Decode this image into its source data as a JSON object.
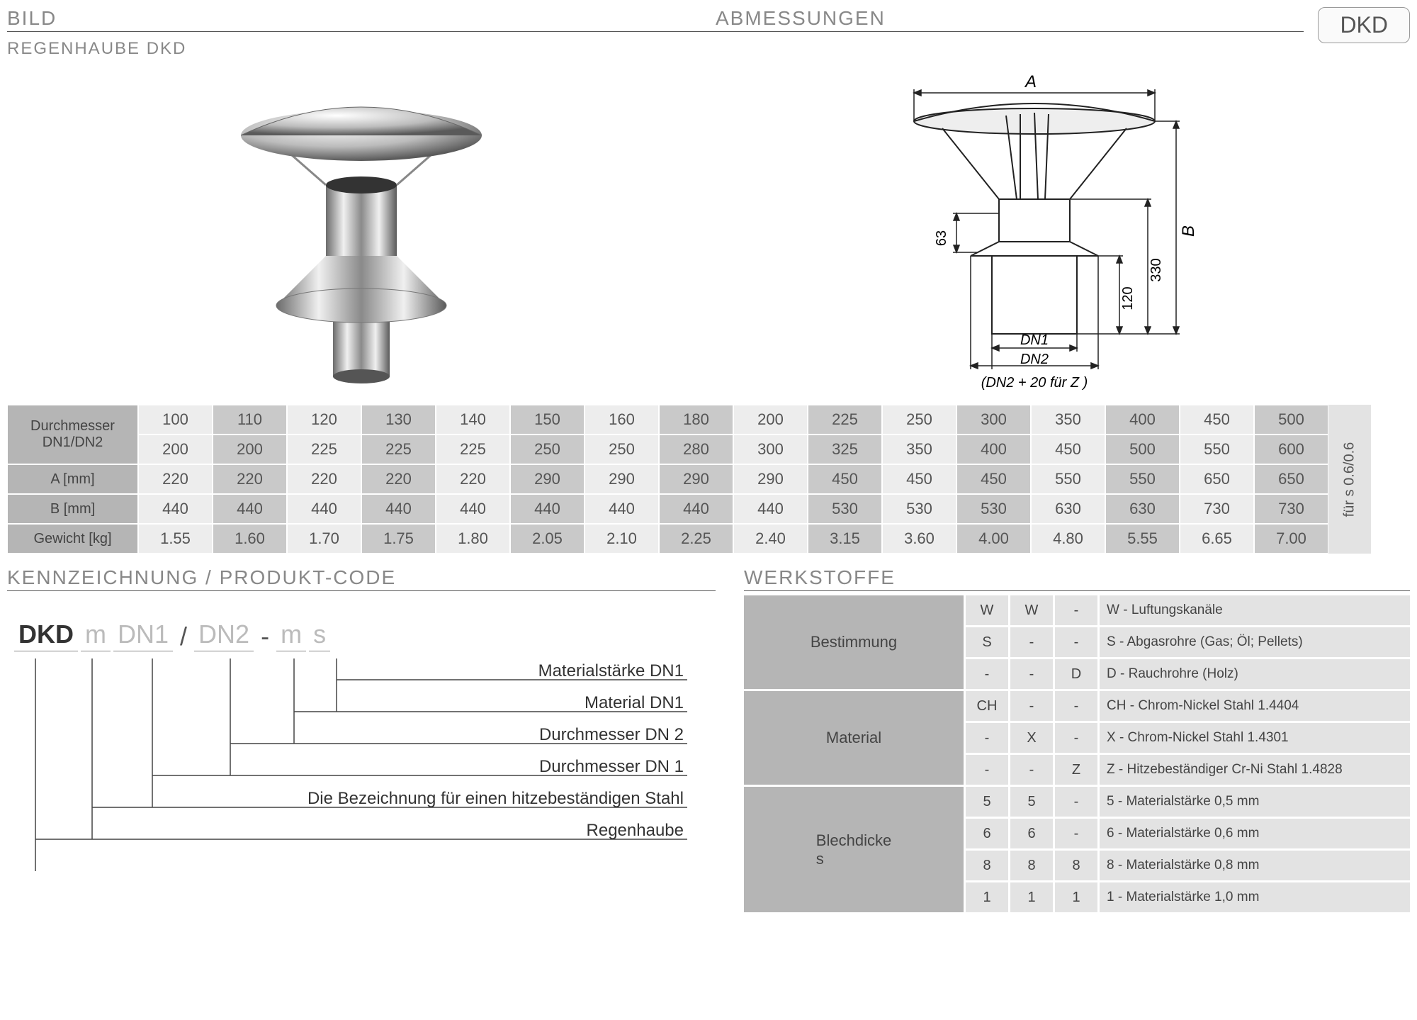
{
  "headers": {
    "bild": "BILD",
    "abmessungen": "ABMESSUNGEN",
    "kennzeichnung": "KENNZEICHNUNG  / PRODUKT-CODE",
    "werkstoffe": "WERKSTOFFE"
  },
  "product_badge": "DKD",
  "subtitle": "REGENHAUBE  DKD",
  "diagram": {
    "label_A": "A",
    "label_B": "B",
    "dim_63": "63",
    "dim_120": "120",
    "dim_330": "330",
    "label_DN1": "DN1",
    "label_DN2": "DN2",
    "note": "(DN2 + 20 für Z )",
    "colors": {
      "line": "#333333",
      "fill_light": "#e8e8e8"
    }
  },
  "table": {
    "row_labels": {
      "diameter_line1": "Durchmesser",
      "diameter_line2": "DN1/DN2",
      "a": "A [mm]",
      "b": "B [mm]",
      "weight": "Gewicht [kg]"
    },
    "side_label": "für s 0.6/0.6",
    "columns_dn1": [
      "100",
      "110",
      "120",
      "130",
      "140",
      "150",
      "160",
      "180",
      "200",
      "225",
      "250",
      "300",
      "350",
      "400",
      "450",
      "500"
    ],
    "columns_dn2": [
      "200",
      "200",
      "225",
      "225",
      "225",
      "250",
      "250",
      "280",
      "300",
      "325",
      "350",
      "400",
      "450",
      "500",
      "550",
      "600"
    ],
    "a_mm": [
      "220",
      "220",
      "220",
      "220",
      "220",
      "290",
      "290",
      "290",
      "290",
      "450",
      "450",
      "450",
      "550",
      "550",
      "650",
      "650"
    ],
    "b_mm": [
      "440",
      "440",
      "440",
      "440",
      "440",
      "440",
      "440",
      "440",
      "440",
      "530",
      "530",
      "530",
      "630",
      "630",
      "730",
      "730"
    ],
    "weight_kg": [
      "1.55",
      "1.60",
      "1.70",
      "1.75",
      "1.80",
      "2.05",
      "2.10",
      "2.25",
      "2.40",
      "3.15",
      "3.60",
      "4.00",
      "4.80",
      "5.55",
      "6.65",
      "7.00"
    ],
    "colors": {
      "label_bg": "#b5b5b5",
      "cell_dark": "#c9c9c9",
      "cell_light": "#ededed",
      "side_bg": "#e3e3e3"
    }
  },
  "code": {
    "tokens": [
      "DKD",
      "m",
      "DN1",
      "/",
      "DN2",
      "-",
      "m",
      "s"
    ],
    "legend": [
      "Materialstärke DN1",
      "Material DN1",
      "Durchmesser DN 2",
      "Durchmesser DN 1",
      "Die Bezeichnung für einen hitzebeständigen Stahl",
      "Regenhaube"
    ]
  },
  "werkstoffe": {
    "groups": [
      {
        "label": "Bestimmung",
        "rows": [
          {
            "c": [
              "W",
              "W",
              "-"
            ],
            "desc": "W - Luftungskanäle"
          },
          {
            "c": [
              "S",
              "-",
              "-"
            ],
            "desc": "S  - Abgasrohre (Gas; Öl; Pellets)"
          },
          {
            "c": [
              "-",
              "-",
              "D"
            ],
            "desc": "D  - Rauchrohre (Holz)"
          }
        ]
      },
      {
        "label": "Material",
        "rows": [
          {
            "c": [
              "CH",
              "-",
              "-"
            ],
            "desc": "CH - Chrom-Nickel Stahl  1.4404"
          },
          {
            "c": [
              "-",
              "X",
              "-"
            ],
            "desc": "X   - Chrom-Nickel Stahl  1.4301"
          },
          {
            "c": [
              "-",
              "-",
              "Z"
            ],
            "desc": "Z  - Hitzebeständiger Cr-Ni Stahl 1.4828"
          }
        ]
      },
      {
        "label": "Blechdicke s",
        "rows": [
          {
            "c": [
              "5",
              "5",
              "-"
            ],
            "desc": "5 - Materialstärke 0,5 mm"
          },
          {
            "c": [
              "6",
              "6",
              "-"
            ],
            "desc": "6 - Materialstärke 0,6 mm"
          },
          {
            "c": [
              "8",
              "8",
              "8"
            ],
            "desc": "8 - Materialstärke 0,8 mm"
          },
          {
            "c": [
              "1",
              "1",
              "1"
            ],
            "desc": "1  - Materialstärke 1,0 mm"
          }
        ]
      }
    ],
    "colors": {
      "group_bg": "#b5b5b5",
      "cell_bg": "#e3e3e3"
    }
  }
}
